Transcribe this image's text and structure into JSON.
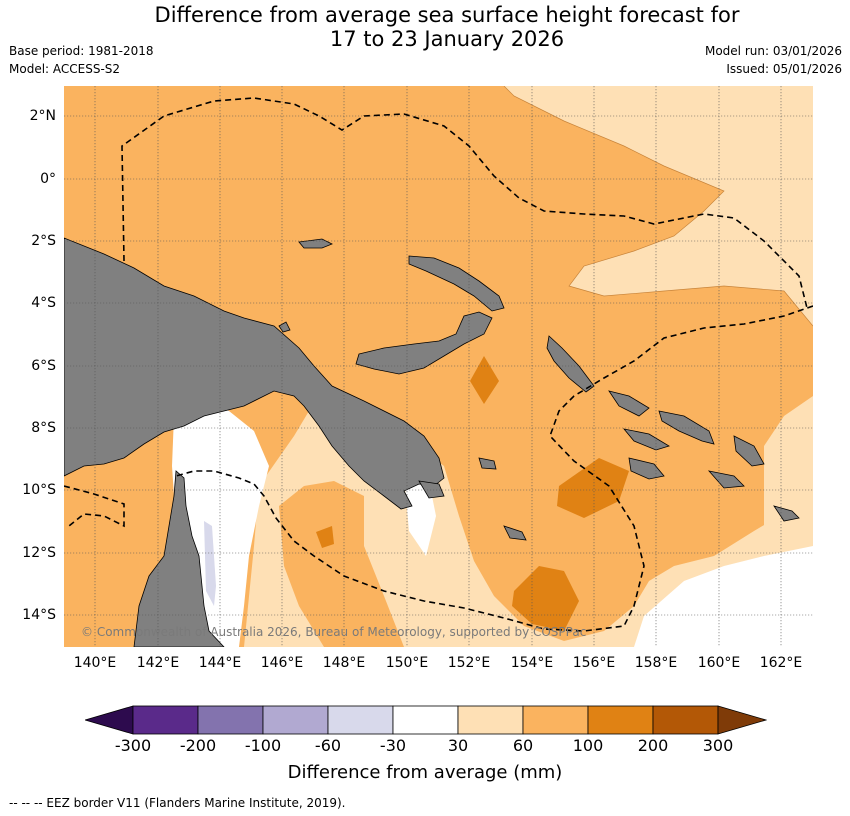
{
  "title_line1": "Difference from average sea surface height forecast for",
  "title_line2": "17 to 23 January 2026",
  "base_period": "Base period: 1981-2018",
  "model": "Model: ACCESS-S2",
  "model_run": "Model run: 03/01/2026",
  "issued": "Issued: 05/01/2026",
  "lat_labels": [
    "2°N",
    "0°",
    "2°S",
    "4°S",
    "6°S",
    "8°S",
    "10°S",
    "12°S",
    "14°S"
  ],
  "lon_labels": [
    "140°E",
    "142°E",
    "144°E",
    "146°E",
    "148°E",
    "150°E",
    "152°E",
    "154°E",
    "156°E",
    "158°E",
    "160°E",
    "162°E"
  ],
  "copyright": "© Commonwealth of Australia 2026, Bureau of Meteorology, supported by COSPPac",
  "colorbar": {
    "ticks": [
      "-300",
      "-200",
      "-100",
      "-60",
      "-30",
      "30",
      "60",
      "100",
      "200",
      "300"
    ],
    "colors": [
      "#2d0b4e",
      "#5a2a8a",
      "#8373ae",
      "#b1a9d1",
      "#d8d9eb",
      "#ffffff",
      "#fee0b5",
      "#fab35f",
      "#e08214",
      "#b35806",
      "#7f3b08"
    ],
    "title": "Difference from average (mm)"
  },
  "footnote": "--  --  -- EEZ border V11 (Flanders Marine Institute, 2019).",
  "map_colors": {
    "land": "#808080",
    "level_30_60": "#fee0b5",
    "level_60_100": "#fab35f",
    "level_100_200": "#e08214",
    "level_neg": "#d8d9eb"
  }
}
